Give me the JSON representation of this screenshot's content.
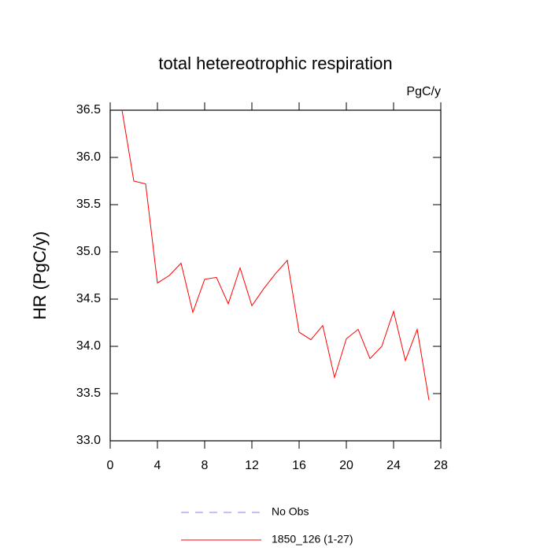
{
  "chart_data": {
    "type": "line",
    "title": "total hetereotrophic respiration",
    "units": "PgC/y",
    "y_label": "HR  (PgC/y)",
    "x": [
      1,
      2,
      3,
      4,
      5,
      6,
      7,
      8,
      9,
      10,
      11,
      12,
      13,
      14,
      15,
      16,
      17,
      18,
      19,
      20,
      21,
      22,
      23,
      24,
      25,
      26,
      27
    ],
    "series": [
      {
        "name": "1850_126 (1-27)",
        "color": "#ff0000",
        "values": [
          36.5,
          35.75,
          35.72,
          34.67,
          34.75,
          34.88,
          34.36,
          34.71,
          34.73,
          34.45,
          34.83,
          34.43,
          34.61,
          34.77,
          34.91,
          34.15,
          34.07,
          34.22,
          33.67,
          34.08,
          34.18,
          33.87,
          34.0,
          34.37,
          33.85,
          34.18,
          33.43
        ]
      }
    ],
    "reference_series": [
      {
        "name": "No Obs",
        "color": "#8080ff",
        "dashed": true
      }
    ],
    "xlim": [
      0,
      28
    ],
    "xticks": [
      0,
      4,
      8,
      12,
      16,
      20,
      24,
      28
    ],
    "ylim": [
      33.0,
      36.5
    ],
    "yticks": [
      {
        "value": 33,
        "label": "33.0"
      },
      33.5,
      {
        "value": 34,
        "label": "34.0"
      },
      34.5,
      {
        "value": 35,
        "label": "35.0"
      },
      35.5,
      {
        "value": 36,
        "label": "36.0"
      },
      36.5
    ]
  }
}
